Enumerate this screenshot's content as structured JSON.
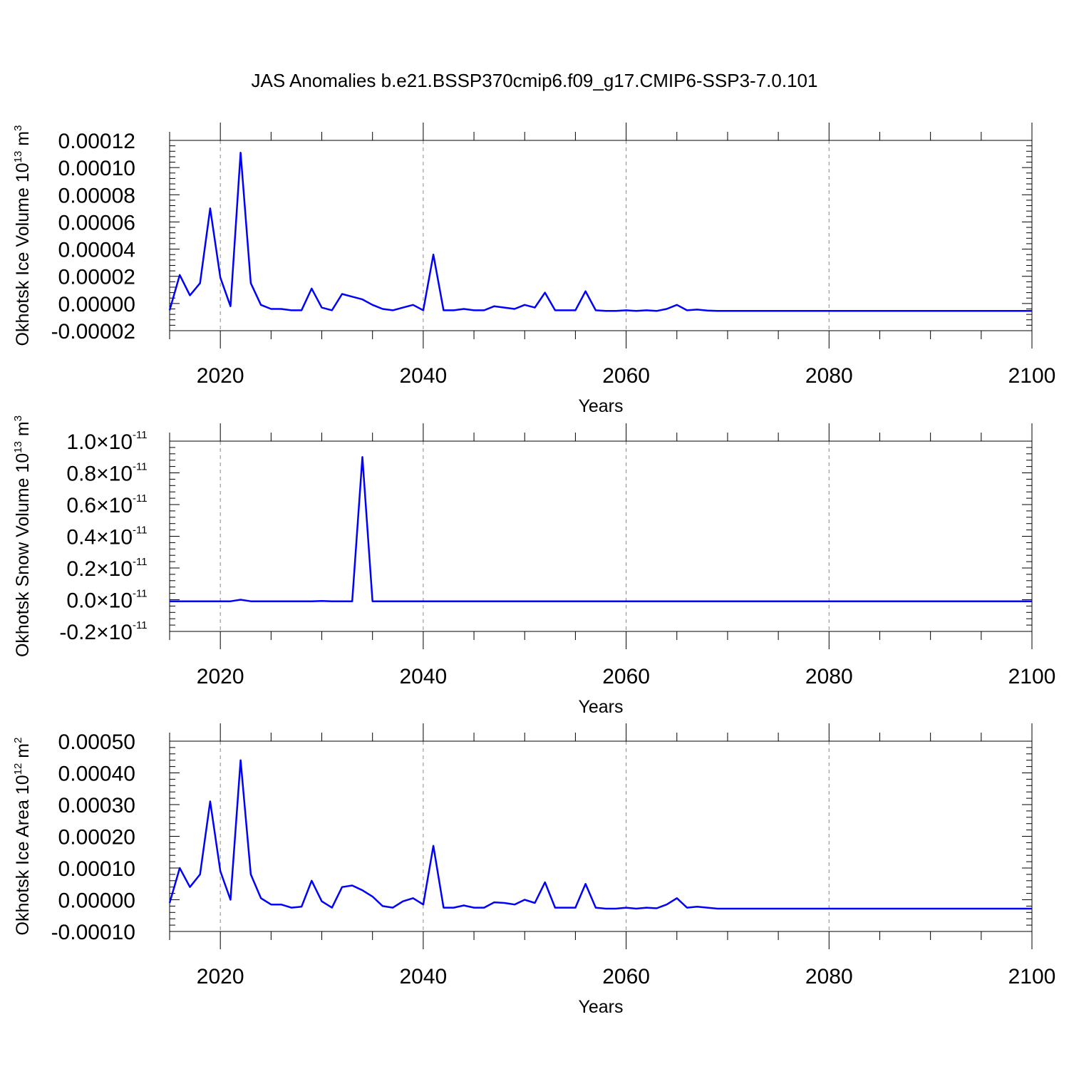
{
  "title": "JAS Anomalies b.e21.BSSP370cmip6.f09_g17.CMIP6-SSP3-7.0.101",
  "colors": {
    "series": "#0000ff",
    "axis": "#000000",
    "grid": "#888888"
  },
  "chart_data": [
    {
      "type": "line",
      "title": "JAS Anomalies b.e21.BSSP370cmip6.f09_g17.CMIP6-SSP3-7.0.101",
      "xlabel": "Years",
      "ylabel": "Okhotsk Ice Volume 10",
      "ylabel_exp": "13",
      "ylabel_unit": " m",
      "ylabel_unit_exp": "3",
      "xlim": [
        2015,
        2100
      ],
      "ylim": [
        -2e-05,
        0.00012
      ],
      "xticks": [
        2020,
        2040,
        2060,
        2080,
        2100
      ],
      "xtick_labels": [
        "2020",
        "2040",
        "2060",
        "2080",
        "2100"
      ],
      "yticks": [
        -2e-05,
        0,
        2e-05,
        4e-05,
        6e-05,
        8e-05,
        0.0001,
        0.00012
      ],
      "ytick_labels": [
        "-0.00002",
        "0.00000",
        "0.00002",
        "0.00004",
        "0.00006",
        "0.00008",
        "0.00010",
        "0.00012"
      ],
      "ytick_exp": "",
      "grid": "vertical dashed at major x ticks",
      "series": [
        {
          "color": "#0000ff",
          "x_start": 2015,
          "values": [
            -5e-06,
            2.1e-05,
            6e-06,
            1.5e-05,
            7e-05,
            1.9e-05,
            -2e-06,
            0.000111,
            1.5e-05,
            -1e-06,
            -4e-06,
            -4e-06,
            -5e-06,
            -5e-06,
            1.1e-05,
            -3e-06,
            -5e-06,
            7e-06,
            5e-06,
            3e-06,
            -1e-06,
            -4e-06,
            -5e-06,
            -3e-06,
            -1e-06,
            -5e-06,
            3.6e-05,
            -5e-06,
            -5e-06,
            -4e-06,
            -5e-06,
            -5e-06,
            -2e-06,
            -3e-06,
            -4e-06,
            -1e-06,
            -3e-06,
            8e-06,
            -5e-06,
            -5e-06,
            -5e-06,
            9e-06,
            -5e-06,
            -5.5e-06,
            -5.5e-06,
            -5e-06,
            -5.5e-06,
            -5e-06,
            -5.5e-06,
            -4e-06,
            -1e-06,
            -5e-06,
            -4.5e-06,
            -5.2e-06,
            -5.5e-06,
            -5.5e-06,
            -5.5e-06,
            -5.5e-06,
            -5.5e-06,
            -5.5e-06,
            -5.5e-06,
            -5.5e-06,
            -5.5e-06,
            -5.5e-06,
            -5.5e-06,
            -5.5e-06,
            -5.5e-06,
            -5.5e-06,
            -5.5e-06,
            -5.5e-06,
            -5.5e-06,
            -5.5e-06,
            -5.5e-06,
            -5.5e-06,
            -5.5e-06,
            -5.5e-06,
            -5.5e-06,
            -5.5e-06,
            -5.5e-06,
            -5.5e-06,
            -5.5e-06,
            -5.5e-06,
            -5.5e-06,
            -5.5e-06,
            -5.5e-06,
            -5.5e-06
          ]
        }
      ]
    },
    {
      "type": "line",
      "xlabel": "Years",
      "ylabel": "Okhotsk Snow Volume 10",
      "ylabel_exp": "13",
      "ylabel_unit": " m",
      "ylabel_unit_exp": "3",
      "xlim": [
        2015,
        2100
      ],
      "ylim": [
        -0.2,
        1.0
      ],
      "xticks": [
        2020,
        2040,
        2060,
        2080,
        2100
      ],
      "xtick_labels": [
        "2020",
        "2040",
        "2060",
        "2080",
        "2100"
      ],
      "yticks": [
        -0.2,
        0,
        0.2,
        0.4,
        0.6,
        0.8,
        1.0
      ],
      "ytick_labels": [
        "-0.2×10",
        "0.0×10",
        "0.2×10",
        "0.4×10",
        "0.6×10",
        "0.8×10",
        "1.0×10"
      ],
      "ytick_exp": "-11",
      "y_scale": "×10^-11",
      "grid": "vertical dashed at major x ticks",
      "series": [
        {
          "color": "#0000ff",
          "x_start": 2015,
          "values": [
            -0.01,
            -0.01,
            -0.01,
            -0.01,
            -0.01,
            -0.01,
            -0.01,
            0.0,
            -0.01,
            -0.01,
            -0.01,
            -0.01,
            -0.01,
            -0.01,
            -0.01,
            -0.008,
            -0.01,
            -0.01,
            -0.01,
            0.9,
            -0.01,
            -0.01,
            -0.01,
            -0.01,
            -0.01,
            -0.01,
            -0.01,
            -0.01,
            -0.01,
            -0.01,
            -0.01,
            -0.01,
            -0.01,
            -0.01,
            -0.01,
            -0.01,
            -0.01,
            -0.01,
            -0.01,
            -0.01,
            -0.01,
            -0.01,
            -0.01,
            -0.01,
            -0.01,
            -0.01,
            -0.01,
            -0.01,
            -0.01,
            -0.01,
            -0.01,
            -0.01,
            -0.01,
            -0.01,
            -0.01,
            -0.01,
            -0.01,
            -0.01,
            -0.01,
            -0.01,
            -0.01,
            -0.01,
            -0.01,
            -0.01,
            -0.01,
            -0.01,
            -0.01,
            -0.01,
            -0.01,
            -0.01,
            -0.01,
            -0.01,
            -0.01,
            -0.01,
            -0.01,
            -0.01,
            -0.01,
            -0.01,
            -0.01,
            -0.01,
            -0.01,
            -0.01,
            -0.01,
            -0.01,
            -0.01,
            -0.01
          ]
        }
      ]
    },
    {
      "type": "line",
      "xlabel": "Years",
      "ylabel": "Okhotsk Ice Area 10",
      "ylabel_exp": "12",
      "ylabel_unit": " m",
      "ylabel_unit_exp": "2",
      "xlim": [
        2015,
        2100
      ],
      "ylim": [
        -0.0001,
        0.0005
      ],
      "xticks": [
        2020,
        2040,
        2060,
        2080,
        2100
      ],
      "xtick_labels": [
        "2020",
        "2040",
        "2060",
        "2080",
        "2100"
      ],
      "yticks": [
        -0.0001,
        0,
        0.0001,
        0.0002,
        0.0003,
        0.0004,
        0.0005
      ],
      "ytick_labels": [
        "-0.00010",
        "0.00000",
        "0.00010",
        "0.00020",
        "0.00030",
        "0.00040",
        "0.00050"
      ],
      "ytick_exp": "",
      "grid": "vertical dashed at major x ticks",
      "series": [
        {
          "color": "#0000ff",
          "x_start": 2015,
          "values": [
            -1e-05,
            0.0001,
            4e-05,
            8e-05,
            0.00031,
            9e-05,
            0.0,
            0.00044,
            8e-05,
            5e-06,
            -1.5e-05,
            -1.5e-05,
            -2.5e-05,
            -2.2e-05,
            6e-05,
            -5e-06,
            -2.5e-05,
            4e-05,
            4.5e-05,
            3e-05,
            1e-05,
            -2e-05,
            -2.5e-05,
            -5e-06,
            5e-06,
            -1.5e-05,
            0.00017,
            -2.5e-05,
            -2.5e-05,
            -1.8e-05,
            -2.5e-05,
            -2.5e-05,
            -8e-06,
            -1e-05,
            -1.5e-05,
            0.0,
            -1e-05,
            5.5e-05,
            -2.5e-05,
            -2.5e-05,
            -2.5e-05,
            5e-05,
            -2.5e-05,
            -2.8e-05,
            -2.8e-05,
            -2.5e-05,
            -2.8e-05,
            -2.5e-05,
            -2.7e-05,
            -1.5e-05,
            5e-06,
            -2.5e-05,
            -2.2e-05,
            -2.5e-05,
            -2.8e-05,
            -2.8e-05,
            -2.8e-05,
            -2.8e-05,
            -2.8e-05,
            -2.8e-05,
            -2.8e-05,
            -2.8e-05,
            -2.8e-05,
            -2.8e-05,
            -2.8e-05,
            -2.8e-05,
            -2.8e-05,
            -2.8e-05,
            -2.8e-05,
            -2.8e-05,
            -2.8e-05,
            -2.8e-05,
            -2.8e-05,
            -2.8e-05,
            -2.8e-05,
            -2.8e-05,
            -2.8e-05,
            -2.8e-05,
            -2.8e-05,
            -2.8e-05,
            -2.8e-05,
            -2.8e-05,
            -2.8e-05,
            -2.8e-05,
            -2.8e-05,
            -2.8e-05
          ]
        }
      ]
    }
  ]
}
